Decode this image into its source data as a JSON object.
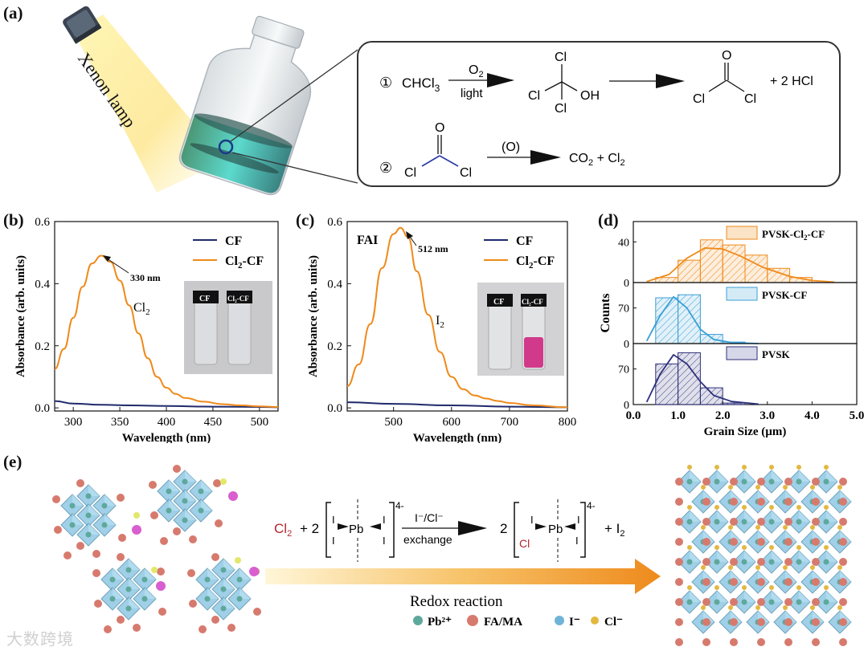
{
  "panel_labels": {
    "a": "(a)",
    "b": "(b)",
    "c": "(c)",
    "d": "(d)",
    "e": "(e)"
  },
  "panel_a": {
    "lamp_label": "Xenon lamp",
    "reaction1": {
      "num": "①",
      "reactant": "CHCl",
      "reactant_sub": "3",
      "arrow_top": "O",
      "arrow_top_sub": "2",
      "arrow_bottom": "light",
      "intermediate": {
        "top": "Cl",
        "left": "Cl",
        "right": "OH",
        "bottom": "Cl"
      },
      "product": {
        "top": "O",
        "left": "Cl",
        "right": "Cl"
      },
      "byproduct": "+ 2 HCl"
    },
    "reaction2": {
      "num": "②",
      "reactant": {
        "top": "O",
        "left": "Cl",
        "right": "Cl"
      },
      "arrow_top": "(O)",
      "products": {
        "co": "CO",
        "co_sub": "2",
        "plus": " + Cl",
        "cl_sub": "2"
      }
    }
  },
  "chart_data": [
    {
      "panel": "b",
      "type": "line",
      "xlabel": "Wavelength (nm)",
      "ylabel": "Absorbance (arb. units)",
      "xlim": [
        280,
        520
      ],
      "ylim": [
        -0.01,
        0.6
      ],
      "xticks": [
        300,
        350,
        400,
        450,
        500
      ],
      "yticks": [
        0.0,
        0.2,
        0.4,
        0.6
      ],
      "ytick_labels": [
        "0.0",
        "0.2",
        "0.4",
        "0.6"
      ],
      "legend_position": "top-right",
      "annotations": [
        {
          "text": "330 nm"
        },
        {
          "text": "Cl",
          "sub": "2"
        }
      ],
      "inset_labels": [
        "CF",
        "Cl2-CF"
      ],
      "series": [
        {
          "name": "CF",
          "color": "#1f2a6b",
          "x": [
            280,
            300,
            330,
            360,
            400,
            450,
            500,
            520
          ],
          "y": [
            0.022,
            0.014,
            0.01,
            0.008,
            0.006,
            0.004,
            0.003,
            0.002
          ]
        },
        {
          "name": "Cl2-CF",
          "color": "#ef8a1a",
          "x": [
            280,
            290,
            300,
            310,
            320,
            330,
            340,
            350,
            360,
            370,
            380,
            390,
            400,
            410,
            420,
            440,
            460,
            480,
            500,
            520
          ],
          "y": [
            0.125,
            0.19,
            0.29,
            0.39,
            0.465,
            0.49,
            0.47,
            0.41,
            0.33,
            0.24,
            0.16,
            0.1,
            0.065,
            0.045,
            0.032,
            0.02,
            0.012,
            0.008,
            0.005,
            0.003
          ]
        }
      ]
    },
    {
      "panel": "c",
      "type": "line",
      "xlabel": "Wavelength (nm)",
      "ylabel": "Absorbance (arb. units)",
      "xlim": [
        420,
        800
      ],
      "ylim": [
        -0.01,
        0.6
      ],
      "xticks": [
        500,
        600,
        700,
        800
      ],
      "yticks": [
        0.0,
        0.2,
        0.4,
        0.6
      ],
      "ytick_labels": [
        "0.0",
        "0.2",
        "0.4",
        "0.6"
      ],
      "legend_position": "top-right",
      "annotations": [
        {
          "text": "FAI"
        },
        {
          "text": "512 nm"
        },
        {
          "text": "I",
          "sub": "2"
        }
      ],
      "inset_labels": [
        "CF",
        "Cl2-CF"
      ],
      "series": [
        {
          "name": "CF",
          "color": "#1f2a6b",
          "x": [
            420,
            500,
            600,
            700,
            800
          ],
          "y": [
            0.018,
            0.013,
            0.008,
            0.004,
            0.002
          ]
        },
        {
          "name": "Cl2-CF",
          "color": "#ef8a1a",
          "x": [
            420,
            440,
            460,
            480,
            500,
            512,
            525,
            540,
            560,
            580,
            600,
            620,
            640,
            660,
            680,
            700,
            740,
            800
          ],
          "y": [
            0.07,
            0.14,
            0.27,
            0.45,
            0.56,
            0.58,
            0.55,
            0.44,
            0.3,
            0.18,
            0.1,
            0.06,
            0.04,
            0.03,
            0.022,
            0.016,
            0.008,
            0.002
          ]
        }
      ]
    },
    {
      "panel": "d",
      "type": "bar",
      "xlabel": "Grain Size (µm)",
      "ylabel": "Counts",
      "xlim": [
        0.0,
        5.0
      ],
      "xticks": [
        0.0,
        1.0,
        2.0,
        3.0,
        4.0,
        5.0
      ],
      "xtick_labels": [
        "0.0",
        "1.0",
        "2.0",
        "3.0",
        "4.0",
        "5.0"
      ],
      "bin_width": 0.5,
      "series": [
        {
          "name": "PVSK-Cl2-CF",
          "color": "#ef8a1a",
          "ylim": [
            0,
            60
          ],
          "yticks": [
            0,
            40
          ],
          "bins": [
            0.5,
            1.0,
            1.5,
            2.0,
            2.5,
            3.0,
            3.5
          ],
          "values": [
            5,
            22,
            42,
            37,
            27,
            14,
            5
          ],
          "fit": [
            [
              0.3,
              1
            ],
            [
              0.8,
              8
            ],
            [
              1.2,
              24
            ],
            [
              1.6,
              34
            ],
            [
              2.0,
              33
            ],
            [
              2.4,
              26
            ],
            [
              2.9,
              15
            ],
            [
              3.5,
              6
            ],
            [
              4.0,
              2
            ],
            [
              4.5,
              0.5
            ]
          ]
        },
        {
          "name": "PVSK-CF",
          "color": "#3a9fd6",
          "ylim": [
            0,
            120
          ],
          "yticks": [
            0,
            70
          ],
          "bins": [
            0.5,
            1.0,
            1.5,
            2.0
          ],
          "values": [
            90,
            96,
            18,
            3
          ],
          "fit": [
            [
              0.3,
              5
            ],
            [
              0.6,
              55
            ],
            [
              0.9,
              92
            ],
            [
              1.2,
              70
            ],
            [
              1.5,
              28
            ],
            [
              1.8,
              8
            ],
            [
              2.2,
              2
            ],
            [
              2.8,
              0
            ]
          ]
        },
        {
          "name": "PVSK",
          "color": "#2d2f7a",
          "ylim": [
            0,
            120
          ],
          "yticks": [
            0,
            70
          ],
          "bins": [
            0.5,
            1.0,
            1.5,
            2.0
          ],
          "values": [
            80,
            102,
            33,
            3
          ],
          "fit": [
            [
              0.3,
              5
            ],
            [
              0.6,
              60
            ],
            [
              0.9,
              98
            ],
            [
              1.2,
              80
            ],
            [
              1.5,
              45
            ],
            [
              1.8,
              18
            ],
            [
              2.2,
              6
            ],
            [
              2.8,
              1
            ]
          ]
        }
      ]
    }
  ],
  "legend": {
    "cf": "CF",
    "cl2cf_pre": "Cl",
    "cl2cf_sub": "2",
    "cl2cf_post": "-CF",
    "pvsk_cl2_pre": "PVSK-Cl",
    "pvsk_cl2_sub": "2",
    "pvsk_cl2_post": "-CF",
    "pvsk_cf": "PVSK-CF",
    "pvsk": "PVSK"
  },
  "inset": {
    "cf": "CF",
    "cl2cf": "Cl₂-CF"
  },
  "panel_e": {
    "equation": {
      "cl2": "Cl",
      "cl2_sub": "2",
      "plus2": "+ 2",
      "pb": "Pb",
      "charge": "4-",
      "arrow_top": "I⁻/Cl⁻",
      "arrow_bottom": "exchange",
      "coef2": "2",
      "cl": "Cl",
      "i": "I",
      "plus_i2": "+ I",
      "i2_sub": "2"
    },
    "arrow_label": "Redox reaction",
    "legend": [
      {
        "label": "Pb²⁺",
        "color": "#5fa89c"
      },
      {
        "label": "FA/MA",
        "color": "#d77a6e"
      },
      {
        "label": "I⁻",
        "color": "#6fb4d8"
      },
      {
        "label": "Cl⁻",
        "color": "#e2b840"
      }
    ],
    "cluster_tags": {
      "cl": "Cl₂",
      "i": "I₂"
    }
  },
  "watermark": "大数跨境"
}
